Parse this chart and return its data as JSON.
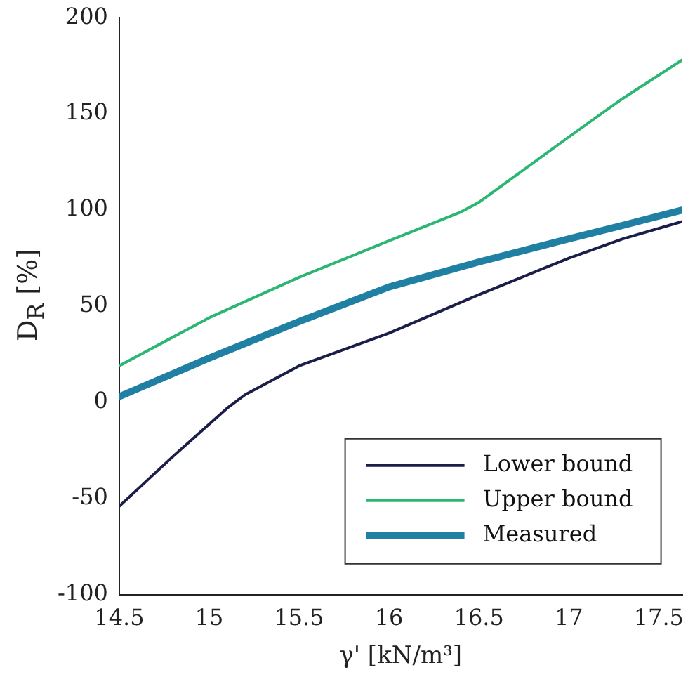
{
  "chart_data": {
    "type": "line",
    "xlabel": "γ' [kN/m³]",
    "ylabel": "D$_{R}$ [%]",
    "xlim": [
      14.5,
      17.63
    ],
    "xticks": [
      14.5,
      15,
      15.5,
      16,
      16.5,
      17,
      17.5
    ],
    "ylim": [
      -100,
      200
    ],
    "yticks": [
      -100,
      -50,
      0,
      50,
      100,
      150,
      200
    ],
    "grid": false,
    "legend": "bottom right",
    "marker": "none",
    "line_style": "solid",
    "series": [
      {
        "name": "Lower bound",
        "color": "#1b1e48",
        "x": [
          14.5,
          14.8,
          15.1,
          15.2,
          15.5,
          16,
          16.5,
          17,
          17.3,
          17.63
        ],
        "values": [
          -54,
          -28,
          -3,
          4,
          19,
          36,
          56,
          75,
          85,
          94
        ]
      },
      {
        "name": "Upper bound",
        "color": "#2bb673",
        "x": [
          14.5,
          15,
          15.5,
          16,
          16.4,
          16.5,
          17,
          17.3,
          17.63
        ],
        "values": [
          19,
          44,
          65,
          84,
          99,
          104,
          138,
          158,
          178
        ]
      },
      {
        "name": "Measured",
        "color": "#2080a3",
        "x": [
          14.5,
          15,
          15.5,
          16,
          16.5,
          17,
          17.3,
          17.63
        ],
        "values": [
          3,
          23,
          42,
          60,
          73,
          85,
          92,
          100
        ]
      }
    ]
  }
}
